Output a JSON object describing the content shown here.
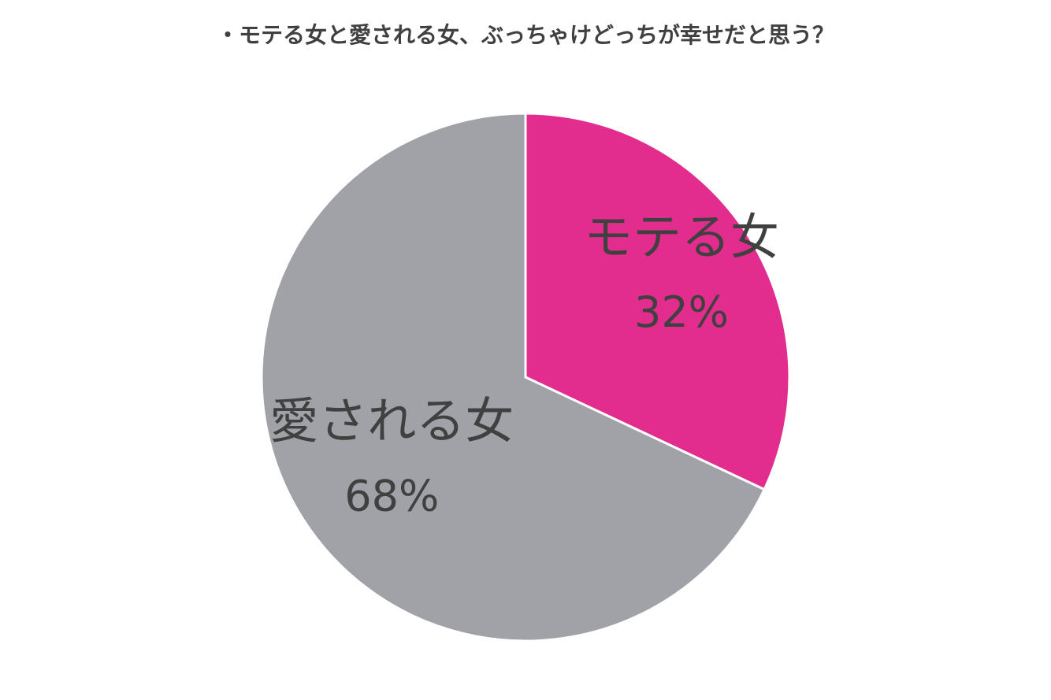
{
  "chart_data": {
    "type": "pie",
    "title": "・モテる女と愛される女、ぶっちゃけどっちが幸せだと思う？",
    "categories": [
      "モテる女",
      "愛される女"
    ],
    "values": [
      32,
      68
    ],
    "value_labels": [
      "32%",
      "68%"
    ],
    "colors": [
      "#e22d8e",
      "#a0a2a8"
    ]
  }
}
